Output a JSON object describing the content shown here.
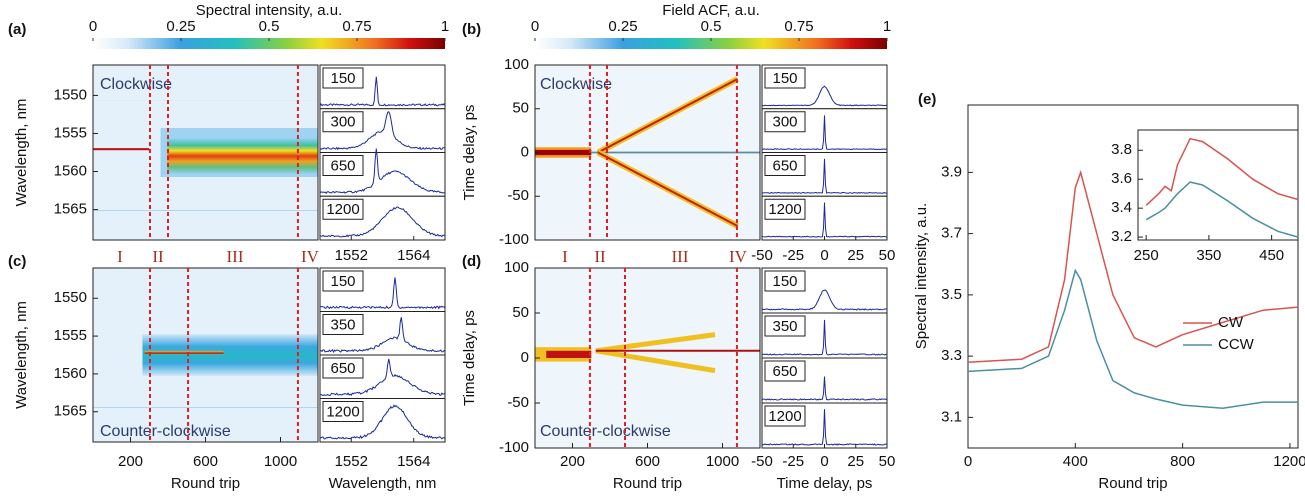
{
  "chart_data": [
    {
      "type": "heatmap",
      "panel_label": "(a)",
      "colorbar_label": "Spectral intensity, a.u.",
      "colorbar_lim": [
        0,
        1
      ],
      "colorbar_ticks": [
        0,
        0.25,
        0.5,
        0.75,
        1
      ],
      "annotation": "Clockwise",
      "ylabel": "Wavelength, nm",
      "ylim": [
        1546,
        1569
      ],
      "y_inverted": true,
      "yticks": [
        1550,
        1555,
        1560,
        1565
      ],
      "xlim": [
        0,
        1200
      ],
      "dashed_lines": [
        304,
        400,
        1093
      ],
      "phases": [
        "I",
        "II",
        "III",
        "IV"
      ],
      "inset_labels": [
        150,
        300,
        650,
        1200
      ],
      "inset_xlim": [
        1546,
        1570
      ],
      "inset_xticks": [
        1552,
        1564
      ]
    },
    {
      "type": "heatmap",
      "panel_label": "(b)",
      "colorbar_label": "Field ACF, a.u.",
      "colorbar_lim": [
        0,
        1
      ],
      "colorbar_ticks": [
        0,
        0.25,
        0.5,
        0.75,
        1
      ],
      "annotation": "Clockwise",
      "ylabel": "Time delay, ps",
      "ylim": [
        -100,
        100
      ],
      "yticks": [
        100,
        50,
        0,
        -50,
        -100
      ],
      "xlim": [
        0,
        1200
      ],
      "dashed_lines": [
        293,
        384,
        1077
      ],
      "phases": [
        "I",
        "II",
        "III",
        "IV"
      ],
      "inset_labels": [
        150,
        300,
        650,
        1200
      ],
      "inset_xlim": [
        -50,
        50
      ],
      "inset_xticks": [
        -50,
        -25,
        0,
        25,
        50
      ]
    },
    {
      "type": "heatmap",
      "panel_label": "(c)",
      "annotation": "Counter-clockwise",
      "ylabel": "Wavelength, nm",
      "ylim": [
        1546,
        1569
      ],
      "y_inverted": true,
      "yticks": [
        1550,
        1555,
        1560,
        1565
      ],
      "xlabel": "Round trip",
      "xlim": [
        0,
        1200
      ],
      "xticks": [
        200,
        600,
        1000
      ],
      "dashed_lines": [
        304,
        507,
        1093
      ],
      "inset_labels": [
        150,
        350,
        650,
        1200
      ],
      "inset_xlim": [
        1546,
        1570
      ],
      "inset_xticks": [
        1552,
        1564
      ],
      "inset_xlabel": "Wavelength, nm"
    },
    {
      "type": "heatmap",
      "panel_label": "(d)",
      "annotation": "Counter-clockwise",
      "ylabel": "Time delay, ps",
      "ylim": [
        -100,
        100
      ],
      "yticks": [
        100,
        50,
        0,
        -50,
        -100
      ],
      "xlabel": "Round trip",
      "xlim": [
        0,
        1200
      ],
      "xticks": [
        200,
        600,
        1000
      ],
      "dashed_lines": [
        293,
        480,
        1077
      ],
      "inset_labels": [
        150,
        350,
        650,
        1200
      ],
      "inset_xlim": [
        -50,
        50
      ],
      "inset_xticks": [
        -50,
        -25,
        0,
        25,
        50
      ],
      "inset_xlabel": "Time delay, ps"
    },
    {
      "type": "line",
      "panel_label": "(e)",
      "xlabel": "Round trip",
      "ylabel": "Spectral intensity, a.u.",
      "xlim": [
        0,
        1230
      ],
      "ylim": [
        3.0,
        4.12
      ],
      "xticks": [
        0,
        400,
        800,
        1200
      ],
      "yticks": [
        3.1,
        3.3,
        3.5,
        3.7,
        3.9
      ],
      "x": [
        0,
        200,
        300,
        360,
        400,
        420,
        480,
        540,
        620,
        700,
        800,
        950,
        1100,
        1230
      ],
      "series": [
        {
          "name": "CW",
          "color": "#d9534f",
          "values": [
            3.28,
            3.29,
            3.33,
            3.55,
            3.85,
            3.9,
            3.7,
            3.5,
            3.36,
            3.33,
            3.37,
            3.41,
            3.45,
            3.46
          ]
        },
        {
          "name": "CCW",
          "color": "#4a8fa3",
          "values": [
            3.25,
            3.26,
            3.3,
            3.45,
            3.58,
            3.55,
            3.35,
            3.22,
            3.18,
            3.16,
            3.14,
            3.13,
            3.15,
            3.15
          ]
        }
      ],
      "inset": {
        "xlim": [
          237,
          492
        ],
        "ylim": [
          3.18,
          3.94
        ],
        "xticks": [
          250,
          350,
          450
        ],
        "yticks": [
          3.2,
          3.4,
          3.6,
          3.8
        ],
        "x": [
          250,
          270,
          280,
          290,
          300,
          320,
          340,
          380,
          420,
          460,
          492
        ],
        "series": [
          {
            "color": "#d9534f",
            "values": [
              3.42,
              3.5,
              3.55,
              3.52,
              3.7,
              3.88,
              3.86,
              3.74,
              3.6,
              3.5,
              3.46
            ]
          },
          {
            "color": "#4a8fa3",
            "values": [
              3.32,
              3.37,
              3.4,
              3.45,
              3.5,
              3.58,
              3.56,
              3.45,
              3.33,
              3.24,
              3.2
            ]
          }
        ]
      }
    }
  ]
}
